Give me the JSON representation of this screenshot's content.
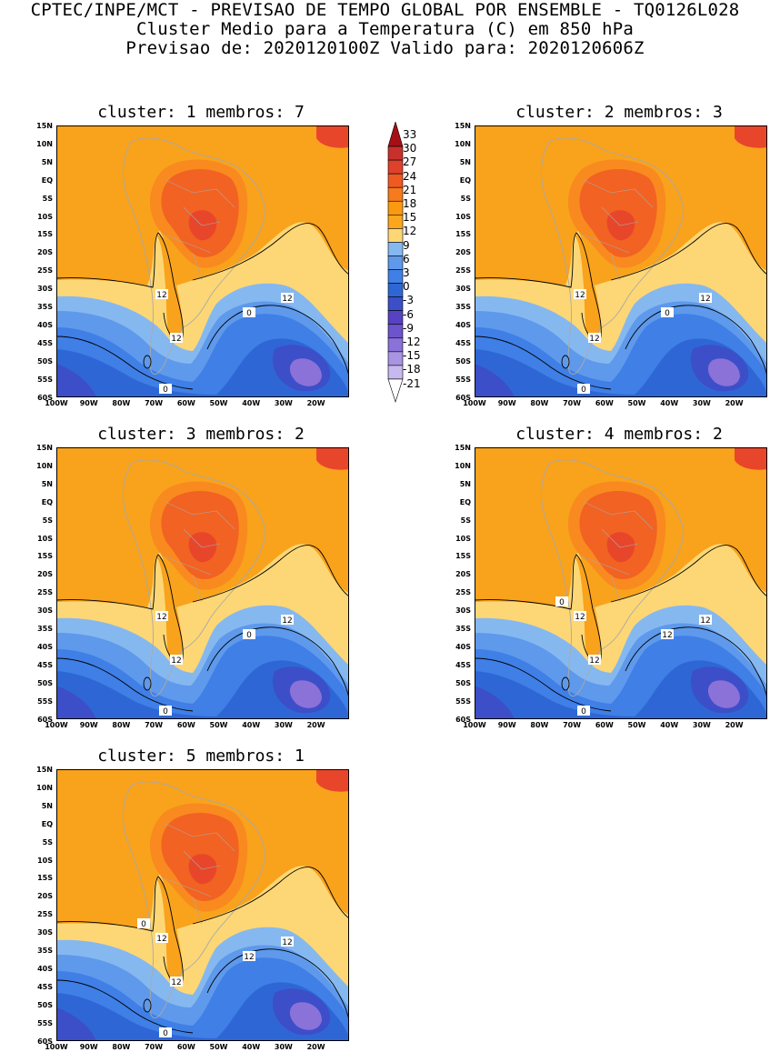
{
  "header": {
    "line1": "CPTEC/INPE/MCT - PREVISAO DE TEMPO GLOBAL POR ENSEMBLE - TQ0126L028",
    "line2": "Cluster Medio para a Temperatura (C) em 850 hPa",
    "line3": "Previsao de: 2020120100Z   Valido para: 2020120606Z"
  },
  "axes": {
    "lat_labels": [
      "15N",
      "10N",
      "5N",
      "EQ",
      "5S",
      "10S",
      "15S",
      "20S",
      "25S",
      "30S",
      "35S",
      "40S",
      "45S",
      "50S",
      "55S",
      "60S"
    ],
    "lon_labels": [
      "100W",
      "90W",
      "80W",
      "70W",
      "60W",
      "50W",
      "40W",
      "30W",
      "20W"
    ]
  },
  "colorbar": {
    "labels": [
      "33",
      "30",
      "27",
      "24",
      "21",
      "18",
      "15",
      "12",
      "9",
      "6",
      "3",
      "0",
      "-3",
      "-6",
      "-9",
      "-12",
      "-15",
      "-18",
      "-21"
    ],
    "colors": [
      "#a50f15",
      "#c8302c",
      "#e0412a",
      "#ef5a22",
      "#f77a1d",
      "#fb9a10",
      "#fca61e",
      "#fdd775",
      "#86b8f0",
      "#5e99eb",
      "#3f7fe6",
      "#2e67d5",
      "#3d4ec9",
      "#5742c2",
      "#6c54cc",
      "#8a72d8",
      "#a894e3",
      "#c7b8ee",
      "#ffffff"
    ]
  },
  "clusters": [
    {
      "title": "cluster: 1   membros: 7",
      "contour_labels": [
        "12",
        "12",
        "12",
        "0",
        "0"
      ]
    },
    {
      "title": "cluster: 2   membros: 3",
      "contour_labels": [
        "12",
        "12",
        "12",
        "0",
        "0"
      ]
    },
    {
      "title": "cluster: 3   membros: 2",
      "contour_labels": [
        "12",
        "12",
        "12",
        "0",
        "0"
      ]
    },
    {
      "title": "cluster: 4   membros: 2",
      "contour_labels": [
        "12",
        "12",
        "12",
        "12",
        "0",
        "0"
      ]
    },
    {
      "title": "cluster: 5   membros: 1",
      "contour_labels": [
        "12",
        "12",
        "12",
        "12",
        "0",
        "0"
      ]
    }
  ]
}
